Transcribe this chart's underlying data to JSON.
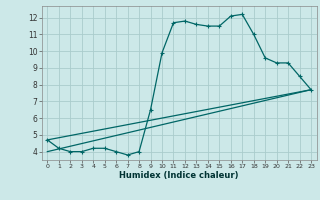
{
  "xlabel": "Humidex (Indice chaleur)",
  "background_color": "#cce8e8",
  "grid_color": "#aacccc",
  "line_color": "#006666",
  "xlim": [
    -0.5,
    23.5
  ],
  "ylim": [
    3.5,
    12.7
  ],
  "xticks": [
    0,
    1,
    2,
    3,
    4,
    5,
    6,
    7,
    8,
    9,
    10,
    11,
    12,
    13,
    14,
    15,
    16,
    17,
    18,
    19,
    20,
    21,
    22,
    23
  ],
  "yticks": [
    4,
    5,
    6,
    7,
    8,
    9,
    10,
    11,
    12
  ],
  "line1_x": [
    0,
    1,
    2,
    3,
    4,
    5,
    6,
    7,
    8,
    9,
    10,
    11,
    12,
    13,
    14,
    15,
    16,
    17,
    18,
    19,
    20,
    21,
    22,
    23
  ],
  "line1_y": [
    4.7,
    4.2,
    4.0,
    4.0,
    4.2,
    4.2,
    4.0,
    3.8,
    4.0,
    6.5,
    9.9,
    11.7,
    11.8,
    11.6,
    11.5,
    11.5,
    12.1,
    12.2,
    11.0,
    9.6,
    9.3,
    9.3,
    8.5,
    7.7
  ],
  "line2_x": [
    0,
    23
  ],
  "line2_y": [
    4.7,
    7.7
  ],
  "line3_x": [
    0,
    23
  ],
  "line3_y": [
    4.0,
    7.7
  ],
  "marker_size": 2.5,
  "line_width": 0.9
}
